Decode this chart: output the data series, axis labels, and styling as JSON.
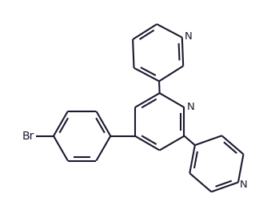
{
  "background_color": "#ffffff",
  "line_color": "#1a1a2e",
  "line_width": 1.5,
  "font_size": 9.5,
  "label_N": "N",
  "label_Br": "Br",
  "figsize": [
    3.29,
    2.72
  ],
  "dpi": 100,
  "xlim": [
    0,
    329
  ],
  "ylim": [
    0,
    272
  ]
}
